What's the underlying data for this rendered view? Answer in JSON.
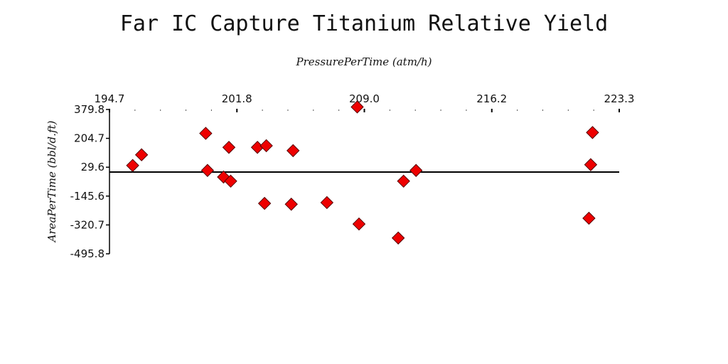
{
  "chart_data": {
    "type": "scatter",
    "title": "Far IC Capture Titanium Relative Yield",
    "xlabel": "PressurePerTime (atm/h)",
    "ylabel": "AreaPerTime (bbl/d.ft)",
    "xlim": [
      194.7,
      223.3
    ],
    "ylim": [
      -495.8,
      379.8
    ],
    "x_ticks": [
      "194.7",
      "201.8",
      "209.0",
      "216.2",
      "223.3"
    ],
    "y_ticks": [
      "379.8",
      "204.7",
      "29.6",
      "-145.6",
      "-320.7",
      "-495.8"
    ],
    "x_axis_position": "top",
    "zero_line": 0,
    "grid": false,
    "colors": {
      "marker_fill": "#ee0000",
      "marker_stroke": "#550000",
      "axis": "#000000"
    },
    "series": [
      {
        "marker": "diamond",
        "points": [
          {
            "x": 196.0,
            "y": 40
          },
          {
            "x": 196.5,
            "y": 105
          },
          {
            "x": 200.1,
            "y": 235
          },
          {
            "x": 200.2,
            "y": 10
          },
          {
            "x": 201.1,
            "y": -30
          },
          {
            "x": 201.4,
            "y": 150
          },
          {
            "x": 201.5,
            "y": -55
          },
          {
            "x": 203.0,
            "y": 150
          },
          {
            "x": 203.5,
            "y": 160
          },
          {
            "x": 203.4,
            "y": -190
          },
          {
            "x": 205.0,
            "y": 130
          },
          {
            "x": 204.9,
            "y": -195
          },
          {
            "x": 206.9,
            "y": -185
          },
          {
            "x": 208.6,
            "y": 395
          },
          {
            "x": 208.7,
            "y": -315
          },
          {
            "x": 210.9,
            "y": -400
          },
          {
            "x": 211.2,
            "y": -55
          },
          {
            "x": 211.9,
            "y": 10
          },
          {
            "x": 221.8,
            "y": 240
          },
          {
            "x": 221.7,
            "y": 45
          },
          {
            "x": 221.6,
            "y": -280
          }
        ]
      }
    ]
  }
}
